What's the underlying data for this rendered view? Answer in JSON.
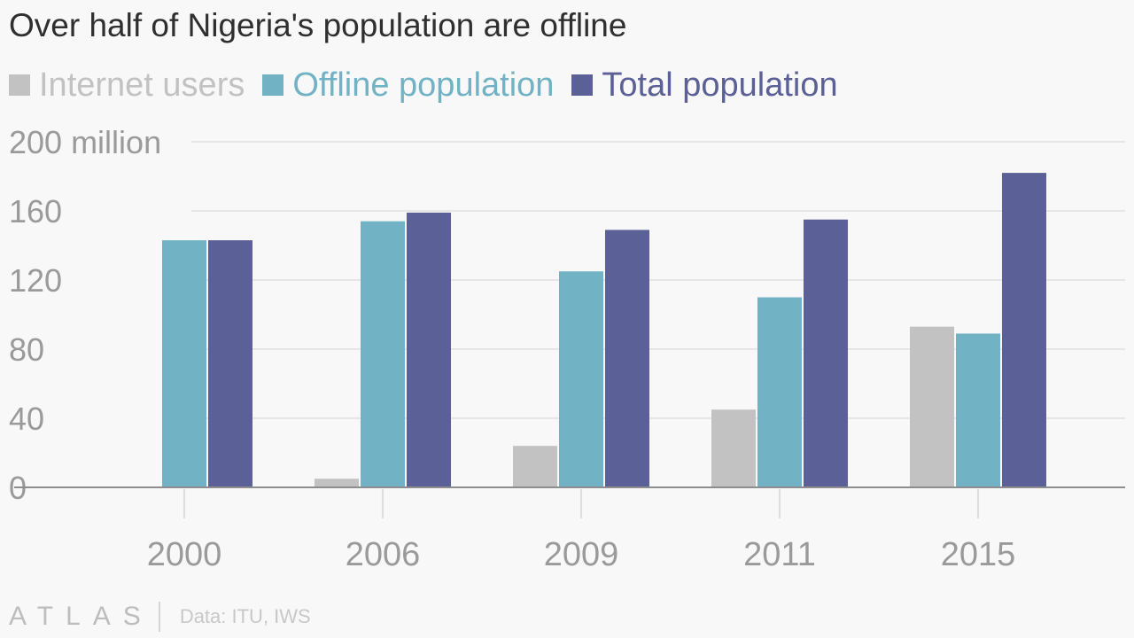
{
  "title": "Over half of Nigeria's population are offline",
  "legend": [
    {
      "label": "Internet users",
      "color": "#c2c2c2"
    },
    {
      "label": "Offline population",
      "color": "#71b3c4"
    },
    {
      "label": "Total population",
      "color": "#5b6096"
    }
  ],
  "footer": {
    "logo": "ATLAS",
    "source": "Data: ITU, IWS"
  },
  "chart_data": {
    "type": "bar",
    "title": "Over half of Nigeria's population are offline",
    "categories": [
      "2000",
      "2006",
      "2009",
      "2011",
      "2015"
    ],
    "series": [
      {
        "name": "Internet users",
        "values": [
          0.1,
          5,
          24,
          45,
          93
        ],
        "color": "#c2c2c2"
      },
      {
        "name": "Offline population",
        "values": [
          143,
          154,
          125,
          110,
          89
        ],
        "color": "#71b3c4"
      },
      {
        "name": "Total population",
        "values": [
          143,
          159,
          149,
          155,
          182
        ],
        "color": "#5b6096"
      }
    ],
    "ylim": [
      0,
      200
    ],
    "yticks": [
      {
        "value": 0,
        "label": "0"
      },
      {
        "value": 40,
        "label": "40"
      },
      {
        "value": 80,
        "label": "80"
      },
      {
        "value": 120,
        "label": "120"
      },
      {
        "value": 160,
        "label": "160"
      },
      {
        "value": 200,
        "label": "200 million"
      }
    ],
    "grid": true,
    "legend_position": "top-left"
  }
}
